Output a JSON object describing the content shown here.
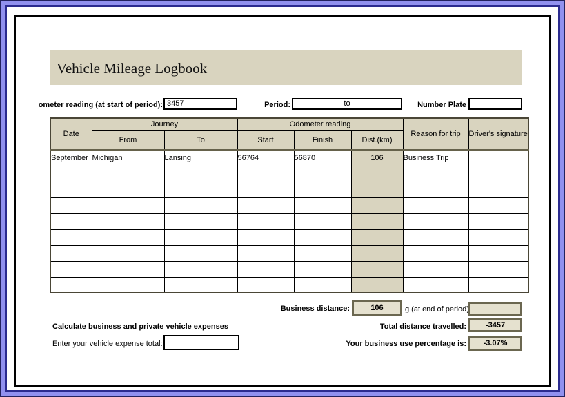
{
  "page": {
    "title": "Vehicle Mileage Logbook"
  },
  "top_fields": {
    "odometer_start_label": "ometer reading (at start of period):",
    "odometer_start_value": "3457",
    "period_label": "Period:",
    "period_value": "to",
    "number_plate_label": "Number Plate",
    "number_plate_value": ""
  },
  "table": {
    "headers": {
      "date": "Date",
      "journey": "Journey",
      "odometer": "Odometer reading",
      "from": "From",
      "to": "To",
      "start": "Start",
      "finish": "Finish",
      "dist": "Dist.(km)",
      "reason": "Reason for trip",
      "signature": "Driver's signature"
    },
    "rows": [
      {
        "date": "September",
        "from": "Michigan",
        "to": "Lansing",
        "start": "56764",
        "finish": "56870",
        "dist": "106",
        "reason": "Business Trip",
        "signature": ""
      },
      {
        "date": "",
        "from": "",
        "to": "",
        "start": "",
        "finish": "",
        "dist": "",
        "reason": "",
        "signature": ""
      },
      {
        "date": "",
        "from": "",
        "to": "",
        "start": "",
        "finish": "",
        "dist": "",
        "reason": "",
        "signature": ""
      },
      {
        "date": "",
        "from": "",
        "to": "",
        "start": "",
        "finish": "",
        "dist": "",
        "reason": "",
        "signature": ""
      },
      {
        "date": "",
        "from": "",
        "to": "",
        "start": "",
        "finish": "",
        "dist": "",
        "reason": "",
        "signature": ""
      },
      {
        "date": "",
        "from": "",
        "to": "",
        "start": "",
        "finish": "",
        "dist": "",
        "reason": "",
        "signature": ""
      },
      {
        "date": "",
        "from": "",
        "to": "",
        "start": "",
        "finish": "",
        "dist": "",
        "reason": "",
        "signature": ""
      },
      {
        "date": "",
        "from": "",
        "to": "",
        "start": "",
        "finish": "",
        "dist": "",
        "reason": "",
        "signature": ""
      },
      {
        "date": "",
        "from": "",
        "to": "",
        "start": "",
        "finish": "",
        "dist": "",
        "reason": "",
        "signature": ""
      }
    ]
  },
  "summary": {
    "business_distance_label": "Business distance:",
    "business_distance_value": "106",
    "odometer_end_label": "g (at end of period):",
    "odometer_end_value": "",
    "total_distance_label": "Total distance travelled:",
    "total_distance_value": "-3457",
    "business_pct_label": "Your business use percentage is:",
    "business_pct_value": "-3.07%"
  },
  "expenses": {
    "heading": "Calculate business and private vehicle expenses",
    "enter_label": "Enter your vehicle expense total:",
    "enter_value": ""
  },
  "colors": {
    "band_beige": "#d9d4bf",
    "box_fill": "#e5e1cf",
    "box_border_olive": "#6b6750",
    "frame_navy": "#2b2b8f",
    "frame_periwinkle": "#9191ef",
    "grid_black": "#000000"
  }
}
